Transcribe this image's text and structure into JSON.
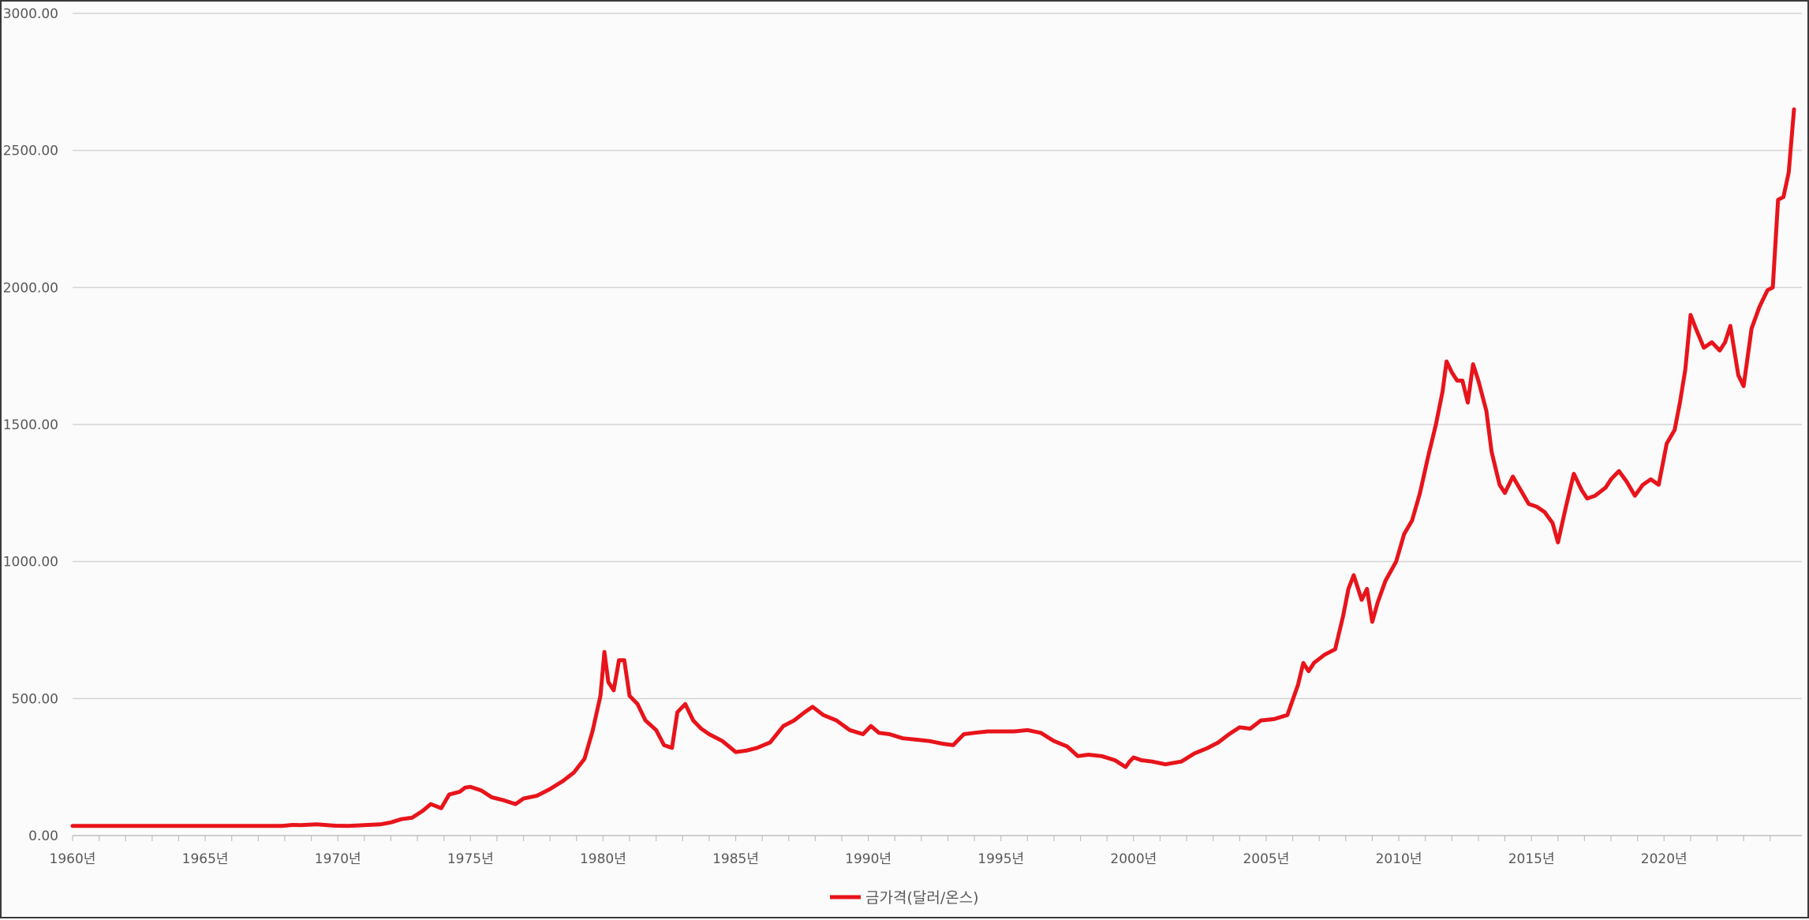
{
  "chart_data": {
    "type": "line",
    "title": "",
    "xlabel": "",
    "ylabel": "",
    "x_tick_labels": [
      "1960년",
      "1965년",
      "1970년",
      "1975년",
      "1980년",
      "1985년",
      "1990년",
      "1995년",
      "2000년",
      "2005년",
      "2010년",
      "2015년",
      "2020년"
    ],
    "y_tick_labels": [
      "0.00",
      "500.00",
      "1000.00",
      "1500.00",
      "2000.00",
      "2500.00",
      "3000.00"
    ],
    "ylim": [
      0,
      3000
    ],
    "xlim": [
      1960,
      2024.9
    ],
    "grid": true,
    "legend_position": "bottom",
    "series": [
      {
        "name": "금가격(달러/온스)",
        "color": "#e8141b",
        "x": [
          1960,
          1965,
          1967.9,
          1968.3,
          1968.6,
          1969.2,
          1969.9,
          1970.4,
          1971.0,
          1971.6,
          1972.0,
          1972.4,
          1972.8,
          1973.2,
          1973.5,
          1973.9,
          1974.2,
          1974.6,
          1974.8,
          1975.0,
          1975.4,
          1975.8,
          1976.2,
          1976.7,
          1977.0,
          1977.5,
          1978.0,
          1978.5,
          1978.9,
          1979.3,
          1979.6,
          1979.9,
          1980.05,
          1980.2,
          1980.4,
          1980.6,
          1980.8,
          1981.0,
          1981.3,
          1981.6,
          1982.0,
          1982.3,
          1982.6,
          1982.8,
          1983.1,
          1983.4,
          1983.7,
          1984.0,
          1984.5,
          1985.0,
          1985.4,
          1985.8,
          1986.3,
          1986.8,
          1987.2,
          1987.6,
          1987.9,
          1988.3,
          1988.8,
          1989.3,
          1989.8,
          1990.1,
          1990.4,
          1990.8,
          1991.3,
          1991.8,
          1992.3,
          1992.8,
          1993.2,
          1993.6,
          1994.0,
          1994.5,
          1995.0,
          1995.5,
          1996.0,
          1996.5,
          1997.0,
          1997.5,
          1997.9,
          1998.3,
          1998.8,
          1999.3,
          1999.7,
          1999.85,
          2000.0,
          2000.3,
          2000.7,
          2001.2,
          2001.8,
          2002.3,
          2002.8,
          2003.2,
          2003.6,
          2004.0,
          2004.4,
          2004.8,
          2005.3,
          2005.8,
          2006.2,
          2006.4,
          2006.6,
          2006.8,
          2007.2,
          2007.6,
          2007.9,
          2008.1,
          2008.3,
          2008.6,
          2008.8,
          2009.0,
          2009.2,
          2009.5,
          2009.9,
          2010.2,
          2010.5,
          2010.8,
          2011.1,
          2011.4,
          2011.65,
          2011.8,
          2012.0,
          2012.2,
          2012.4,
          2012.6,
          2012.8,
          2013.0,
          2013.3,
          2013.5,
          2013.8,
          2014.0,
          2014.3,
          2014.6,
          2014.9,
          2015.2,
          2015.5,
          2015.8,
          2016.0,
          2016.3,
          2016.6,
          2016.9,
          2017.1,
          2017.4,
          2017.8,
          2018.0,
          2018.3,
          2018.6,
          2018.9,
          2019.2,
          2019.5,
          2019.8,
          2020.1,
          2020.4,
          2020.6,
          2020.8,
          2021.0,
          2021.2,
          2021.5,
          2021.8,
          2022.1,
          2022.3,
          2022.5,
          2022.8,
          2023.0,
          2023.3,
          2023.6,
          2023.9,
          2024.1,
          2024.3,
          2024.5,
          2024.7,
          2024.9
        ],
        "values": [
          35,
          35,
          35,
          39,
          38,
          41,
          36,
          35,
          38,
          41,
          48,
          60,
          65,
          90,
          115,
          100,
          150,
          160,
          175,
          178,
          165,
          140,
          130,
          115,
          135,
          145,
          170,
          200,
          230,
          280,
          380,
          510,
          670,
          560,
          530,
          640,
          640,
          510,
          480,
          420,
          385,
          330,
          320,
          450,
          480,
          420,
          390,
          370,
          345,
          305,
          310,
          320,
          340,
          400,
          420,
          450,
          470,
          440,
          420,
          385,
          370,
          400,
          375,
          370,
          355,
          350,
          345,
          335,
          330,
          370,
          375,
          380,
          380,
          380,
          385,
          375,
          345,
          325,
          290,
          295,
          290,
          275,
          250,
          270,
          285,
          275,
          270,
          260,
          270,
          300,
          320,
          340,
          370,
          395,
          390,
          420,
          425,
          440,
          550,
          630,
          600,
          630,
          660,
          680,
          800,
          900,
          950,
          860,
          900,
          780,
          850,
          930,
          1000,
          1100,
          1150,
          1250,
          1380,
          1500,
          1620,
          1730,
          1690,
          1660,
          1660,
          1580,
          1720,
          1660,
          1550,
          1400,
          1280,
          1250,
          1310,
          1260,
          1210,
          1200,
          1180,
          1140,
          1070,
          1200,
          1320,
          1260,
          1230,
          1240,
          1270,
          1300,
          1330,
          1290,
          1240,
          1280,
          1300,
          1280,
          1430,
          1480,
          1580,
          1700,
          1900,
          1850,
          1780,
          1800,
          1770,
          1800,
          1860,
          1680,
          1640,
          1850,
          1930,
          1990,
          2000,
          2320,
          2330,
          2420,
          2650
        ]
      }
    ]
  }
}
